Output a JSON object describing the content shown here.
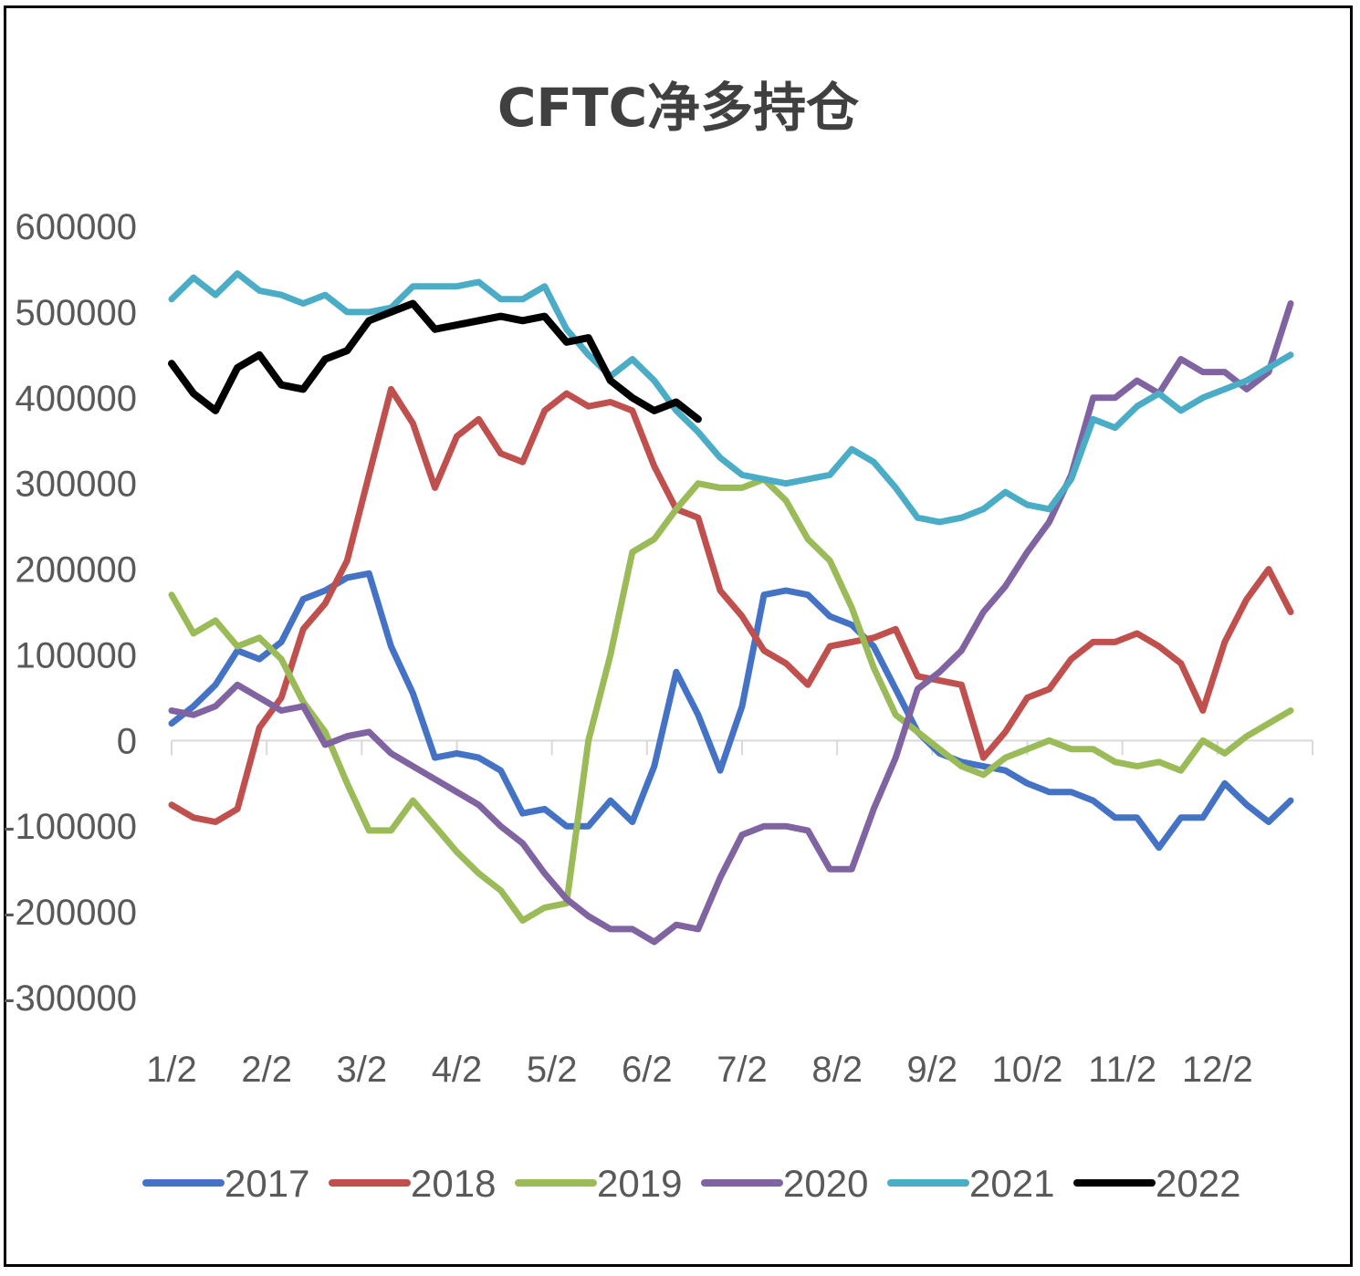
{
  "chart_data": {
    "type": "line",
    "title": "CFTC净多持仓",
    "xlabel": "",
    "ylabel": "",
    "ylim": [
      -300000,
      600000
    ],
    "y_ticks": [
      600000,
      500000,
      400000,
      300000,
      200000,
      100000,
      0,
      -100000,
      -200000,
      -300000
    ],
    "y_tick_labels": [
      "600000",
      "500000",
      "400000",
      "300000",
      "200000",
      "100000",
      "0",
      "-100000",
      "-200000",
      "-300000"
    ],
    "x_tick_labels": [
      "1/2",
      "2/2",
      "3/2",
      "4/2",
      "5/2",
      "6/2",
      "7/2",
      "8/2",
      "9/2",
      "10/2",
      "11/2",
      "12/2"
    ],
    "weeks_per_year": 52,
    "grid": false,
    "legend_position": "bottom",
    "series": [
      {
        "name": "2017",
        "color": "#4472C4",
        "values": [
          20000,
          40000,
          65000,
          105000,
          95000,
          115000,
          165000,
          175000,
          190000,
          195000,
          110000,
          55000,
          -20000,
          -15000,
          -20000,
          -35000,
          -85000,
          -80000,
          -100000,
          -100000,
          -70000,
          -95000,
          -30000,
          80000,
          30000,
          -35000,
          40000,
          170000,
          175000,
          170000,
          145000,
          135000,
          110000,
          60000,
          10000,
          -15000,
          -25000,
          -30000,
          -35000,
          -50000,
          -60000,
          -60000,
          -70000,
          -90000,
          -90000,
          -125000,
          -90000,
          -90000,
          -50000,
          -75000,
          -95000,
          -70000
        ]
      },
      {
        "name": "2018",
        "color": "#C0504D",
        "values": [
          -75000,
          -90000,
          -95000,
          -80000,
          15000,
          50000,
          130000,
          160000,
          210000,
          310000,
          410000,
          370000,
          295000,
          355000,
          375000,
          335000,
          325000,
          385000,
          405000,
          390000,
          395000,
          385000,
          320000,
          270000,
          260000,
          175000,
          145000,
          105000,
          90000,
          65000,
          110000,
          115000,
          120000,
          130000,
          75000,
          70000,
          65000,
          -20000,
          10000,
          50000,
          60000,
          95000,
          115000,
          115000,
          125000,
          110000,
          90000,
          35000,
          115000,
          165000,
          200000,
          150000
        ]
      },
      {
        "name": "2019",
        "color": "#9BBB59",
        "values": [
          170000,
          125000,
          140000,
          110000,
          120000,
          95000,
          45000,
          10000,
          -50000,
          -105000,
          -105000,
          -70000,
          -100000,
          -130000,
          -155000,
          -175000,
          -210000,
          -195000,
          -190000,
          0,
          100000,
          220000,
          235000,
          270000,
          300000,
          295000,
          295000,
          305000,
          280000,
          235000,
          210000,
          155000,
          85000,
          30000,
          10000,
          -10000,
          -30000,
          -40000,
          -20000,
          -10000,
          0,
          -10000,
          -10000,
          -25000,
          -30000,
          -25000,
          -35000,
          0,
          -15000,
          5000,
          20000,
          35000
        ]
      },
      {
        "name": "2020",
        "color": "#8064A2",
        "values": [
          35000,
          30000,
          40000,
          65000,
          50000,
          35000,
          40000,
          -5000,
          5000,
          10000,
          -15000,
          -30000,
          -45000,
          -60000,
          -75000,
          -100000,
          -120000,
          -155000,
          -185000,
          -205000,
          -220000,
          -220000,
          -235000,
          -215000,
          -220000,
          -160000,
          -110000,
          -100000,
          -100000,
          -105000,
          -150000,
          -150000,
          -80000,
          -20000,
          60000,
          80000,
          105000,
          150000,
          180000,
          220000,
          255000,
          310000,
          400000,
          400000,
          420000,
          405000,
          445000,
          430000,
          430000,
          410000,
          430000,
          510000
        ]
      },
      {
        "name": "2021",
        "color": "#4BACC6",
        "values": [
          515000,
          540000,
          520000,
          545000,
          525000,
          520000,
          510000,
          520000,
          500000,
          500000,
          505000,
          530000,
          530000,
          530000,
          535000,
          515000,
          515000,
          530000,
          480000,
          450000,
          425000,
          445000,
          420000,
          385000,
          360000,
          330000,
          310000,
          305000,
          300000,
          305000,
          310000,
          340000,
          325000,
          295000,
          260000,
          255000,
          260000,
          270000,
          290000,
          275000,
          270000,
          305000,
          375000,
          365000,
          390000,
          405000,
          385000,
          400000,
          410000,
          420000,
          435000,
          450000
        ]
      },
      {
        "name": "2022",
        "color": "#000000",
        "values": [
          440000,
          405000,
          385000,
          435000,
          450000,
          415000,
          410000,
          445000,
          455000,
          490000,
          500000,
          510000,
          480000,
          485000,
          490000,
          495000,
          490000,
          495000,
          465000,
          470000,
          420000,
          400000,
          385000,
          395000,
          375000
        ]
      }
    ]
  }
}
